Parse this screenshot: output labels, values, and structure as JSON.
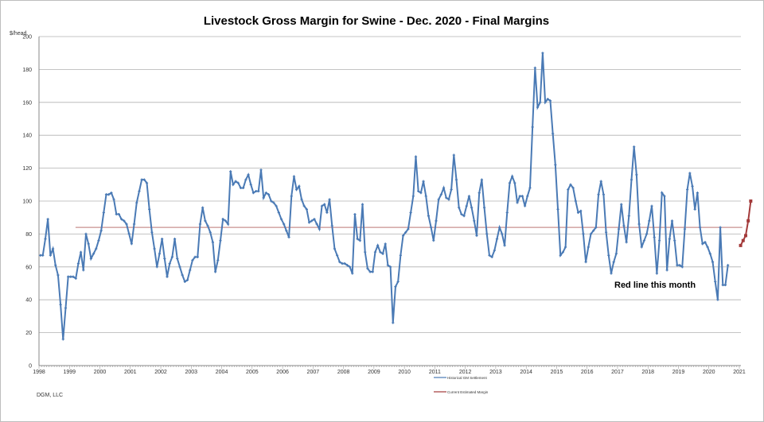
{
  "chart_data": {
    "type": "line",
    "title": "Livestock Gross Margin for Swine -  Dec. 2020 - Final Margins",
    "ylabel": "$/head",
    "xlabel": "",
    "ylim": [
      0,
      200
    ],
    "yticks": [
      0,
      20,
      40,
      60,
      80,
      100,
      120,
      140,
      160,
      180,
      200
    ],
    "xlim": [
      1998,
      2021.6
    ],
    "xticks": [
      "1998",
      "1999",
      "2000",
      "2001",
      "2002",
      "2003",
      "2004",
      "2005",
      "2006",
      "2007",
      "2008",
      "2009",
      "2010",
      "2011",
      "2012",
      "2013",
      "2014",
      "2015",
      "2016",
      "2017",
      "2018",
      "2019",
      "2020",
      "2021"
    ],
    "grid": true,
    "legend_placement": "bottom-center",
    "annotation": "Red line this month",
    "footer": "DGM, LLC",
    "series": [
      {
        "name": "Historical GM Settlement",
        "color": "#4a7ab5",
        "start_year": 1998,
        "frequency": "monthly",
        "values": [
          67,
          67,
          77,
          89,
          67,
          71,
          61,
          55,
          37,
          16,
          35,
          54,
          54,
          54,
          53,
          62,
          69,
          58,
          80,
          74,
          65,
          68,
          71,
          76,
          82,
          93,
          104,
          104,
          105,
          101,
          92,
          92,
          89,
          88,
          86,
          80,
          74,
          86,
          99,
          106,
          113,
          113,
          111,
          95,
          81,
          71,
          60,
          68,
          77,
          65,
          54,
          62,
          66,
          77,
          65,
          60,
          55,
          51,
          52,
          58,
          64,
          66,
          66,
          86,
          96,
          88,
          85,
          81,
          75,
          57,
          64,
          76,
          89,
          88,
          86,
          118,
          110,
          112,
          111,
          108,
          108,
          113,
          116,
          110,
          105,
          106,
          106,
          119,
          102,
          105,
          104,
          100,
          99,
          97,
          93,
          89,
          86,
          82,
          78,
          103,
          115,
          107,
          109,
          101,
          97,
          95,
          87,
          88,
          89,
          86,
          83,
          97,
          98,
          93,
          101,
          85,
          71,
          67,
          63,
          62,
          62,
          61,
          60,
          56,
          92,
          77,
          76,
          98,
          69,
          59,
          57,
          57,
          69,
          73,
          69,
          68,
          74,
          61,
          60,
          26,
          48,
          51,
          67,
          79,
          81,
          83,
          93,
          103,
          127,
          106,
          105,
          112,
          103,
          91,
          84,
          76,
          88,
          101,
          104,
          108,
          102,
          101,
          107,
          128,
          113,
          96,
          92,
          91,
          97,
          103,
          96,
          88,
          79,
          105,
          113,
          96,
          80,
          67,
          66,
          70,
          77,
          84,
          80,
          73,
          93,
          111,
          115,
          111,
          99,
          103,
          103,
          97,
          103,
          108,
          145,
          181,
          157,
          160,
          190,
          160,
          162,
          161,
          141,
          122,
          95,
          67,
          69,
          72,
          107,
          110,
          108,
          100,
          93,
          94,
          80,
          63,
          72,
          80,
          82,
          84,
          104,
          112,
          104,
          81,
          67,
          56,
          63,
          68,
          83,
          98,
          85,
          75,
          91,
          113,
          133,
          116,
          86,
          72,
          76,
          80,
          88,
          97,
          78,
          56,
          76,
          105,
          103,
          58,
          77,
          88,
          76,
          61,
          61,
          60,
          83,
          107,
          117,
          109,
          95,
          105,
          84,
          74,
          75,
          72,
          68,
          63,
          51,
          40,
          84,
          49,
          49,
          61
        ]
      },
      {
        "name": "Current Estimated Margin",
        "color": "#a33a3a",
        "start_year": 2021,
        "frequency": "monthly",
        "values": [
          73,
          76,
          79,
          88,
          100
        ],
        "reference_line": {
          "value": 84,
          "from_year": 1999.2,
          "to_year": 2021.1
        }
      }
    ]
  }
}
